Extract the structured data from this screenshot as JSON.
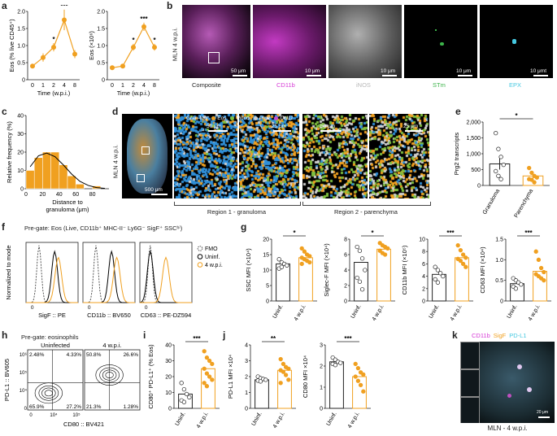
{
  "panels": [
    "a",
    "b",
    "c",
    "d",
    "e",
    "f",
    "g",
    "h",
    "i",
    "j",
    "k"
  ],
  "a": {
    "chart_data": [
      {
        "type": "line",
        "x_categories": [
          "0",
          "1",
          "2",
          "4",
          "8"
        ],
        "values": [
          0.4,
          0.65,
          0.95,
          1.75,
          0.75
        ],
        "errors": [
          0.06,
          0.12,
          0.12,
          0.3,
          0.12
        ],
        "ylabel": "Eos (% live CD45⁺)",
        "xlabel": "Time (w.p.i.)",
        "ylim": [
          0,
          2.0
        ],
        "yticks": [
          "0",
          "0.5",
          "1.0",
          "1.5",
          "2.0"
        ],
        "sig": [
          {
            "at": "2",
            "text": "*"
          },
          {
            "at": "4",
            "text": "***"
          }
        ],
        "color": "#f0a020"
      },
      {
        "type": "line",
        "x_categories": [
          "0",
          "1",
          "2",
          "4",
          "8"
        ],
        "values": [
          0.35,
          0.4,
          0.95,
          1.55,
          0.95
        ],
        "errors": [
          0.04,
          0.05,
          0.1,
          0.12,
          0.1
        ],
        "ylabel": "Eos (×10⁶)",
        "xlabel": "Time (w.p.i.)",
        "ylim": [
          0,
          2.0
        ],
        "yticks": [
          "0",
          "0.5",
          "1.0",
          "1.5",
          "2.0"
        ],
        "sig": [
          {
            "at": "2",
            "text": "*"
          },
          {
            "at": "4",
            "text": "***"
          },
          {
            "at": "8",
            "text": "*"
          }
        ],
        "color": "#f0a020"
      }
    ]
  },
  "b": {
    "side_label": "MLN 4 w.p.i.",
    "composite_label": "Composite",
    "composite_scale": "50 μm",
    "channels": [
      {
        "label": "CD11b",
        "color": "#d63ad6",
        "scale": "10 μm"
      },
      {
        "label": "iNOS",
        "color": "#b8b8b8",
        "scale": "10 μm"
      },
      {
        "label": "STm",
        "color": "#3cb34a",
        "scale": "10 μm"
      },
      {
        "label": "EPX",
        "color": "#45c8e0",
        "scale": "10 μmt"
      }
    ]
  },
  "c": {
    "chart_data": {
      "type": "bar",
      "categories": [
        "0",
        "10",
        "20",
        "30",
        "40",
        "50",
        "60",
        "70",
        "80",
        "90"
      ],
      "values": [
        10,
        17,
        20,
        20,
        13,
        7,
        2.5,
        0,
        1.5,
        0
      ],
      "curve": [
        [
          0,
          12
        ],
        [
          10,
          18
        ],
        [
          20,
          19.5
        ],
        [
          30,
          17.5
        ],
        [
          40,
          13
        ],
        [
          50,
          8
        ],
        [
          60,
          4
        ],
        [
          70,
          1.8
        ],
        [
          80,
          0.6
        ],
        [
          90,
          0.2
        ]
      ],
      "ylabel": "Relative frequency (%)",
      "xlabel": "Distance to granuloma (μm)",
      "ylim": [
        0,
        40
      ],
      "yticks": [
        "0",
        "10",
        "20",
        "30",
        "40"
      ],
      "xticks": [
        "0",
        "20",
        "40",
        "60",
        "80"
      ],
      "color": "#f0a020"
    }
  },
  "d": {
    "side_label": "MLN 4 w.p.i.",
    "scale_main": "500 μm",
    "scale_a": "50 μm",
    "scale_b": "25 μm",
    "scale_c": "50 μm",
    "scale_d": "25 μm",
    "legend": [
      {
        "label": "Gran-Mφ",
        "color": "#2f8fd8"
      },
      {
        "label": "Eos",
        "color": "#f0a020"
      },
      {
        "label": "Mono",
        "color": "#7fbf3f"
      },
      {
        "label": "Prg2",
        "color": "#d0d0d0"
      },
      {
        "label": "Ccl11",
        "color": "#c84fd0"
      }
    ],
    "region1": "Region 1 - granuloma",
    "region2": "Region 2 - parenchyma"
  },
  "e": {
    "chart_data": {
      "type": "scatter-bar",
      "categories": [
        "Granuloma",
        "Parenchyma"
      ],
      "means": [
        680,
        300
      ],
      "errors": [
        180,
        90
      ],
      "points": [
        [
          1650,
          1150,
          900,
          650,
          450,
          300,
          200
        ],
        [
          550,
          400,
          300,
          250,
          200,
          180,
          100
        ]
      ],
      "ylabel": "Prg2 transcripts",
      "ylim": [
        0,
        2000
      ],
      "yticks": [
        "0",
        "500",
        "1,000",
        "1,500",
        "2,000"
      ],
      "sig": "*",
      "color": "#f0a020"
    }
  },
  "f": {
    "pregate": "Pre-gate: Eos (Live, CD11b⁺ MHC-II⁻ Ly6G⁻ SigF⁺ SSCʰⁱ)",
    "ylabel": "Normalized to mode",
    "xlabels": [
      "SigF :: PE",
      "CD11b :: BV650",
      "CD63 :: PE-DZ594"
    ],
    "legend": [
      {
        "label": "FMO",
        "style": "dashed"
      },
      {
        "label": "Uninf.",
        "color": "#000000"
      },
      {
        "label": "4 w.p.i.",
        "color": "#f0a020"
      }
    ],
    "tick0": "0"
  },
  "g": {
    "chart_data": [
      {
        "type": "scatter-bar",
        "ylabel": "SSC MFI (×10⁴)",
        "categories": [
          "Uninf.",
          "4 w.p.i."
        ],
        "means": [
          12,
          14
        ],
        "ylim": [
          0,
          20
        ],
        "yticks": [
          "0",
          "5",
          "10",
          "15",
          "20"
        ],
        "sig": "*",
        "points": [
          [
            13.5,
            12.5,
            12,
            11.5,
            10.5,
            11
          ],
          [
            17,
            16,
            15,
            14.5,
            14,
            13.5,
            13,
            12.5,
            12
          ]
        ]
      },
      {
        "type": "scatter-bar",
        "ylabel": "Siglec-F MFI (×10⁴)",
        "categories": [
          "Uninf.",
          "4 w.p.i."
        ],
        "means": [
          5,
          6.7
        ],
        "ylim": [
          0,
          8
        ],
        "yticks": [
          "0",
          "2",
          "4",
          "6",
          "8"
        ],
        "sig": "*",
        "points": [
          [
            7,
            6.5,
            5.5,
            4,
            3,
            2.5,
            1.5
          ],
          [
            7.5,
            7.2,
            7,
            6.8,
            6.5,
            6.2,
            6
          ]
        ]
      },
      {
        "type": "scatter-bar",
        "ylabel": "CD11b MFI (×10⁵)",
        "categories": [
          "Uninf.",
          "4 w.p.i."
        ],
        "means": [
          4.3,
          7
        ],
        "ylim": [
          0,
          10
        ],
        "yticks": [
          "0",
          "2",
          "4",
          "6",
          "8",
          "10"
        ],
        "sig": "***",
        "points": [
          [
            5.5,
            5,
            4.5,
            4,
            3.5,
            3
          ],
          [
            9,
            8.2,
            7.5,
            7,
            6.8,
            6.5,
            6,
            5.5
          ]
        ]
      },
      {
        "type": "scatter-bar",
        "ylabel": "CD63 MFI (×10⁴)",
        "categories": [
          "Uninf.",
          "4 w.p.i."
        ],
        "means": [
          0.42,
          0.72
        ],
        "ylim": [
          0,
          1.5
        ],
        "yticks": [
          "0",
          "0.5",
          "1.0",
          "1.5"
        ],
        "sig": "***",
        "points": [
          [
            0.55,
            0.5,
            0.45,
            0.4,
            0.35,
            0.3
          ],
          [
            1.2,
            1.0,
            0.8,
            0.7,
            0.65,
            0.6,
            0.55,
            0.5
          ]
        ]
      }
    ]
  },
  "h": {
    "pregate": "Pre-gate: eosinophils",
    "titles": [
      "Uninfected",
      "4 w.p.i."
    ],
    "ylabel": "PD-L1 :: BV605",
    "xlabel": "CD80 :: BV421",
    "uninf_quadrants": [
      "2.48%",
      "4.33%",
      "65.9%",
      "27.2%"
    ],
    "wpi_quadrants": [
      "50.8%",
      "26.6%",
      "21.3%",
      "1.28%"
    ],
    "yticks": [
      "10⁶",
      "10⁵",
      "10⁴",
      "0"
    ],
    "xticks": [
      "0",
      "10⁴",
      "10⁵"
    ]
  },
  "i": {
    "chart_data": {
      "type": "scatter-bar",
      "ylabel": "CD80⁺ PD-L1⁺ (% Eos)",
      "categories": [
        "Uninf.",
        "4 w.p.i."
      ],
      "means": [
        9,
        25
      ],
      "ylim": [
        0,
        40
      ],
      "yticks": [
        "0",
        "10",
        "20",
        "30",
        "40"
      ],
      "sig": "***",
      "points": [
        [
          16,
          12,
          9,
          7,
          5,
          4
        ],
        [
          36,
          32,
          30,
          28,
          25,
          22,
          20,
          18,
          16,
          14
        ]
      ]
    }
  },
  "j": {
    "chart_data": [
      {
        "type": "scatter-bar",
        "ylabel": "PD-L1 MFI ×10⁴",
        "categories": [
          "Uninf.",
          "4 w.p.i."
        ],
        "means": [
          1.8,
          2.4
        ],
        "ylim": [
          0,
          4
        ],
        "yticks": [
          "0",
          "1",
          "2",
          "3",
          "4"
        ],
        "sig": "**",
        "points": [
          [
            2.0,
            1.9,
            1.85,
            1.8,
            1.75,
            1.7
          ],
          [
            3.1,
            2.8,
            2.6,
            2.5,
            2.4,
            2.3,
            2.1,
            1.8,
            1.6
          ]
        ]
      },
      {
        "type": "scatter-bar",
        "ylabel": "CD80 MFI ×10⁴",
        "categories": [
          "Uninf.",
          "4 w.p.i."
        ],
        "means": [
          2.2,
          1.5
        ],
        "ylim": [
          0,
          3
        ],
        "yticks": [
          "0",
          "1",
          "2",
          "3"
        ],
        "sig": "***",
        "points": [
          [
            2.4,
            2.3,
            2.2,
            2.15,
            2.1,
            2.05
          ],
          [
            2.1,
            1.9,
            1.7,
            1.6,
            1.5,
            1.3,
            1.1,
            0.8
          ]
        ]
      }
    ]
  },
  "k": {
    "legend": [
      {
        "label": "CD11b",
        "color": "#d63ad6"
      },
      {
        "label": "SigF",
        "color": "#f0a020"
      },
      {
        "label": "PD-L1",
        "color": "#45c8e0"
      }
    ],
    "caption": "MLN - 4 w.p.i.",
    "scale": "20 μm"
  }
}
